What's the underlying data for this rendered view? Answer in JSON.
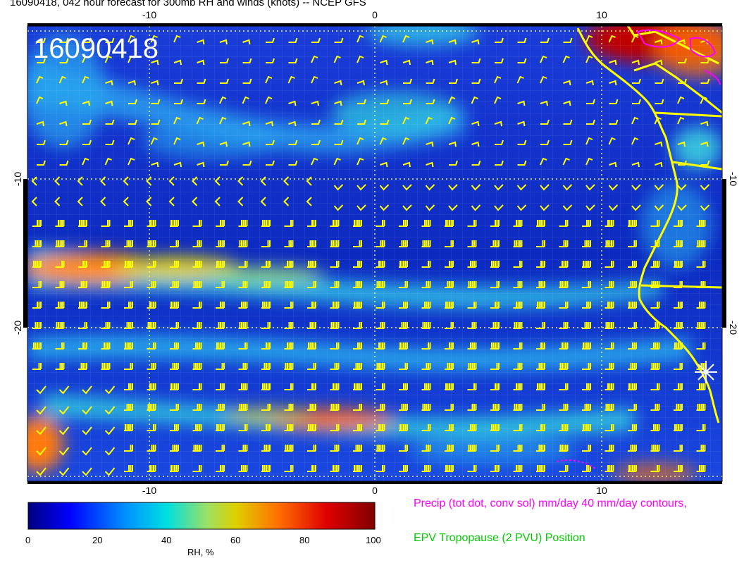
{
  "title": "16090418, 042 hour forecast for 300mb RH and winds (knots) -- NCEP GFS",
  "stamp": "16090418",
  "map": {
    "lon_ticks": [
      "-10",
      "0",
      "10"
    ],
    "lat_ticks": [
      "-10",
      "-20"
    ],
    "colors": {
      "barb": "#ffff00",
      "coast": "#ffff00",
      "precip": "#ff00ff",
      "grid": "#ffff66"
    }
  },
  "colorbar": {
    "title": "RH, %",
    "ticks": [
      "0",
      "20",
      "40",
      "60",
      "80",
      "100"
    ],
    "colors": [
      "#000080",
      "#0000ff",
      "#0090ff",
      "#00e0e0",
      "#a0e060",
      "#e0d000",
      "#ff7000",
      "#e00000",
      "#800000"
    ]
  },
  "legend": {
    "precip": "Precip (tot dot, conv sol) mm/day 40 mm/day contours,",
    "epv": "EPV Tropopause (2 PVU) Position"
  }
}
